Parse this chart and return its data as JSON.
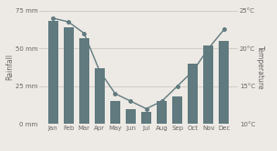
{
  "months": [
    "Jan",
    "Feb",
    "Mar",
    "Apr",
    "May",
    "Jun",
    "Jul",
    "Aug",
    "Sep",
    "Oct",
    "Nov",
    "Dec"
  ],
  "rainfall": [
    68,
    64,
    57,
    37,
    15,
    10,
    8,
    15,
    18,
    40,
    52,
    55
  ],
  "temperature": [
    24.0,
    23.5,
    22.0,
    17.0,
    14.0,
    13.0,
    12.0,
    13.0,
    15.0,
    17.0,
    20.0,
    22.5
  ],
  "bar_color": "#607a7f",
  "line_color": "#607a7f",
  "background_color": "#ede9e4",
  "ylabel_left": "Rainfall",
  "ylabel_right": "Temperature",
  "ylim_left": [
    0,
    75
  ],
  "ylim_right": [
    10,
    25
  ],
  "yticks_left": [
    0,
    25,
    50,
    75
  ],
  "yticks_right": [
    10,
    15,
    20,
    25
  ],
  "ytick_labels_left": [
    "0 mm",
    "25 mm",
    "50 mm",
    "75 mm"
  ],
  "ytick_labels_right": [
    "10°C",
    "15°C",
    "20°C",
    "25°C"
  ],
  "font_size": 5.0,
  "label_font_size": 5.5
}
